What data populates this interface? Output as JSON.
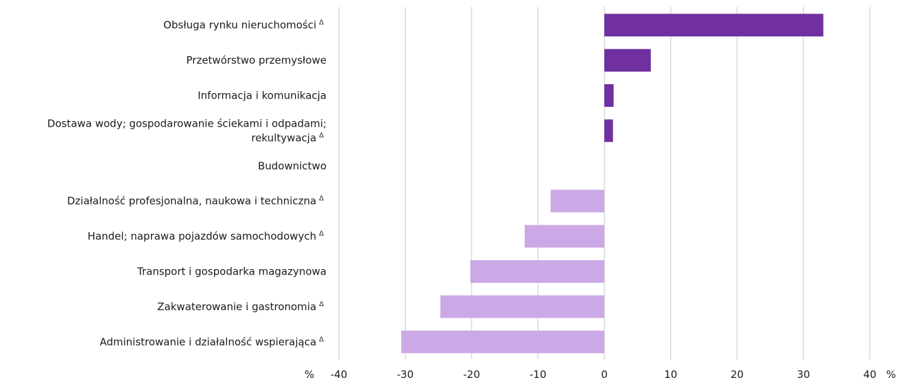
{
  "chart_data": {
    "type": "bar",
    "orientation": "horizontal",
    "categories": [
      {
        "label": "Obsługa rynku nieruchomości",
        "delta": true
      },
      {
        "label": "Przetwórstwo przemysłowe",
        "delta": false
      },
      {
        "label": "Informacja i komunikacja",
        "delta": false
      },
      {
        "label": [
          "Dostawa wody; gospodarowanie ściekami i odpadami;",
          "rekultywacja"
        ],
        "delta": true
      },
      {
        "label": "Budownictwo",
        "delta": false
      },
      {
        "label": "Działalność profesjonalna, naukowa i techniczna",
        "delta": true
      },
      {
        "label": "Handel; naprawa pojazdów samochodowych",
        "delta": true
      },
      {
        "label": "Transport i gospodarka magazynowa",
        "delta": false
      },
      {
        "label": "Zakwaterowanie i gastronomia",
        "delta": true
      },
      {
        "label": "Administrowanie i działalność wspierająca",
        "delta": true
      }
    ],
    "values": [
      33.0,
      7.0,
      1.4,
      1.3,
      0,
      -8.1,
      -12.0,
      -20.2,
      -24.7,
      -30.6
    ],
    "xlim": [
      -40,
      40
    ],
    "xticks": [
      -40,
      -30,
      -20,
      -10,
      0,
      10,
      20,
      30,
      40
    ],
    "x_unit_left": "%",
    "x_unit_right": "%",
    "delta_symbol": "Δ",
    "grid": true,
    "colors": {
      "positive": "#7030a0",
      "negative": "#cba8e6",
      "grid": "#d9d9d9"
    }
  }
}
